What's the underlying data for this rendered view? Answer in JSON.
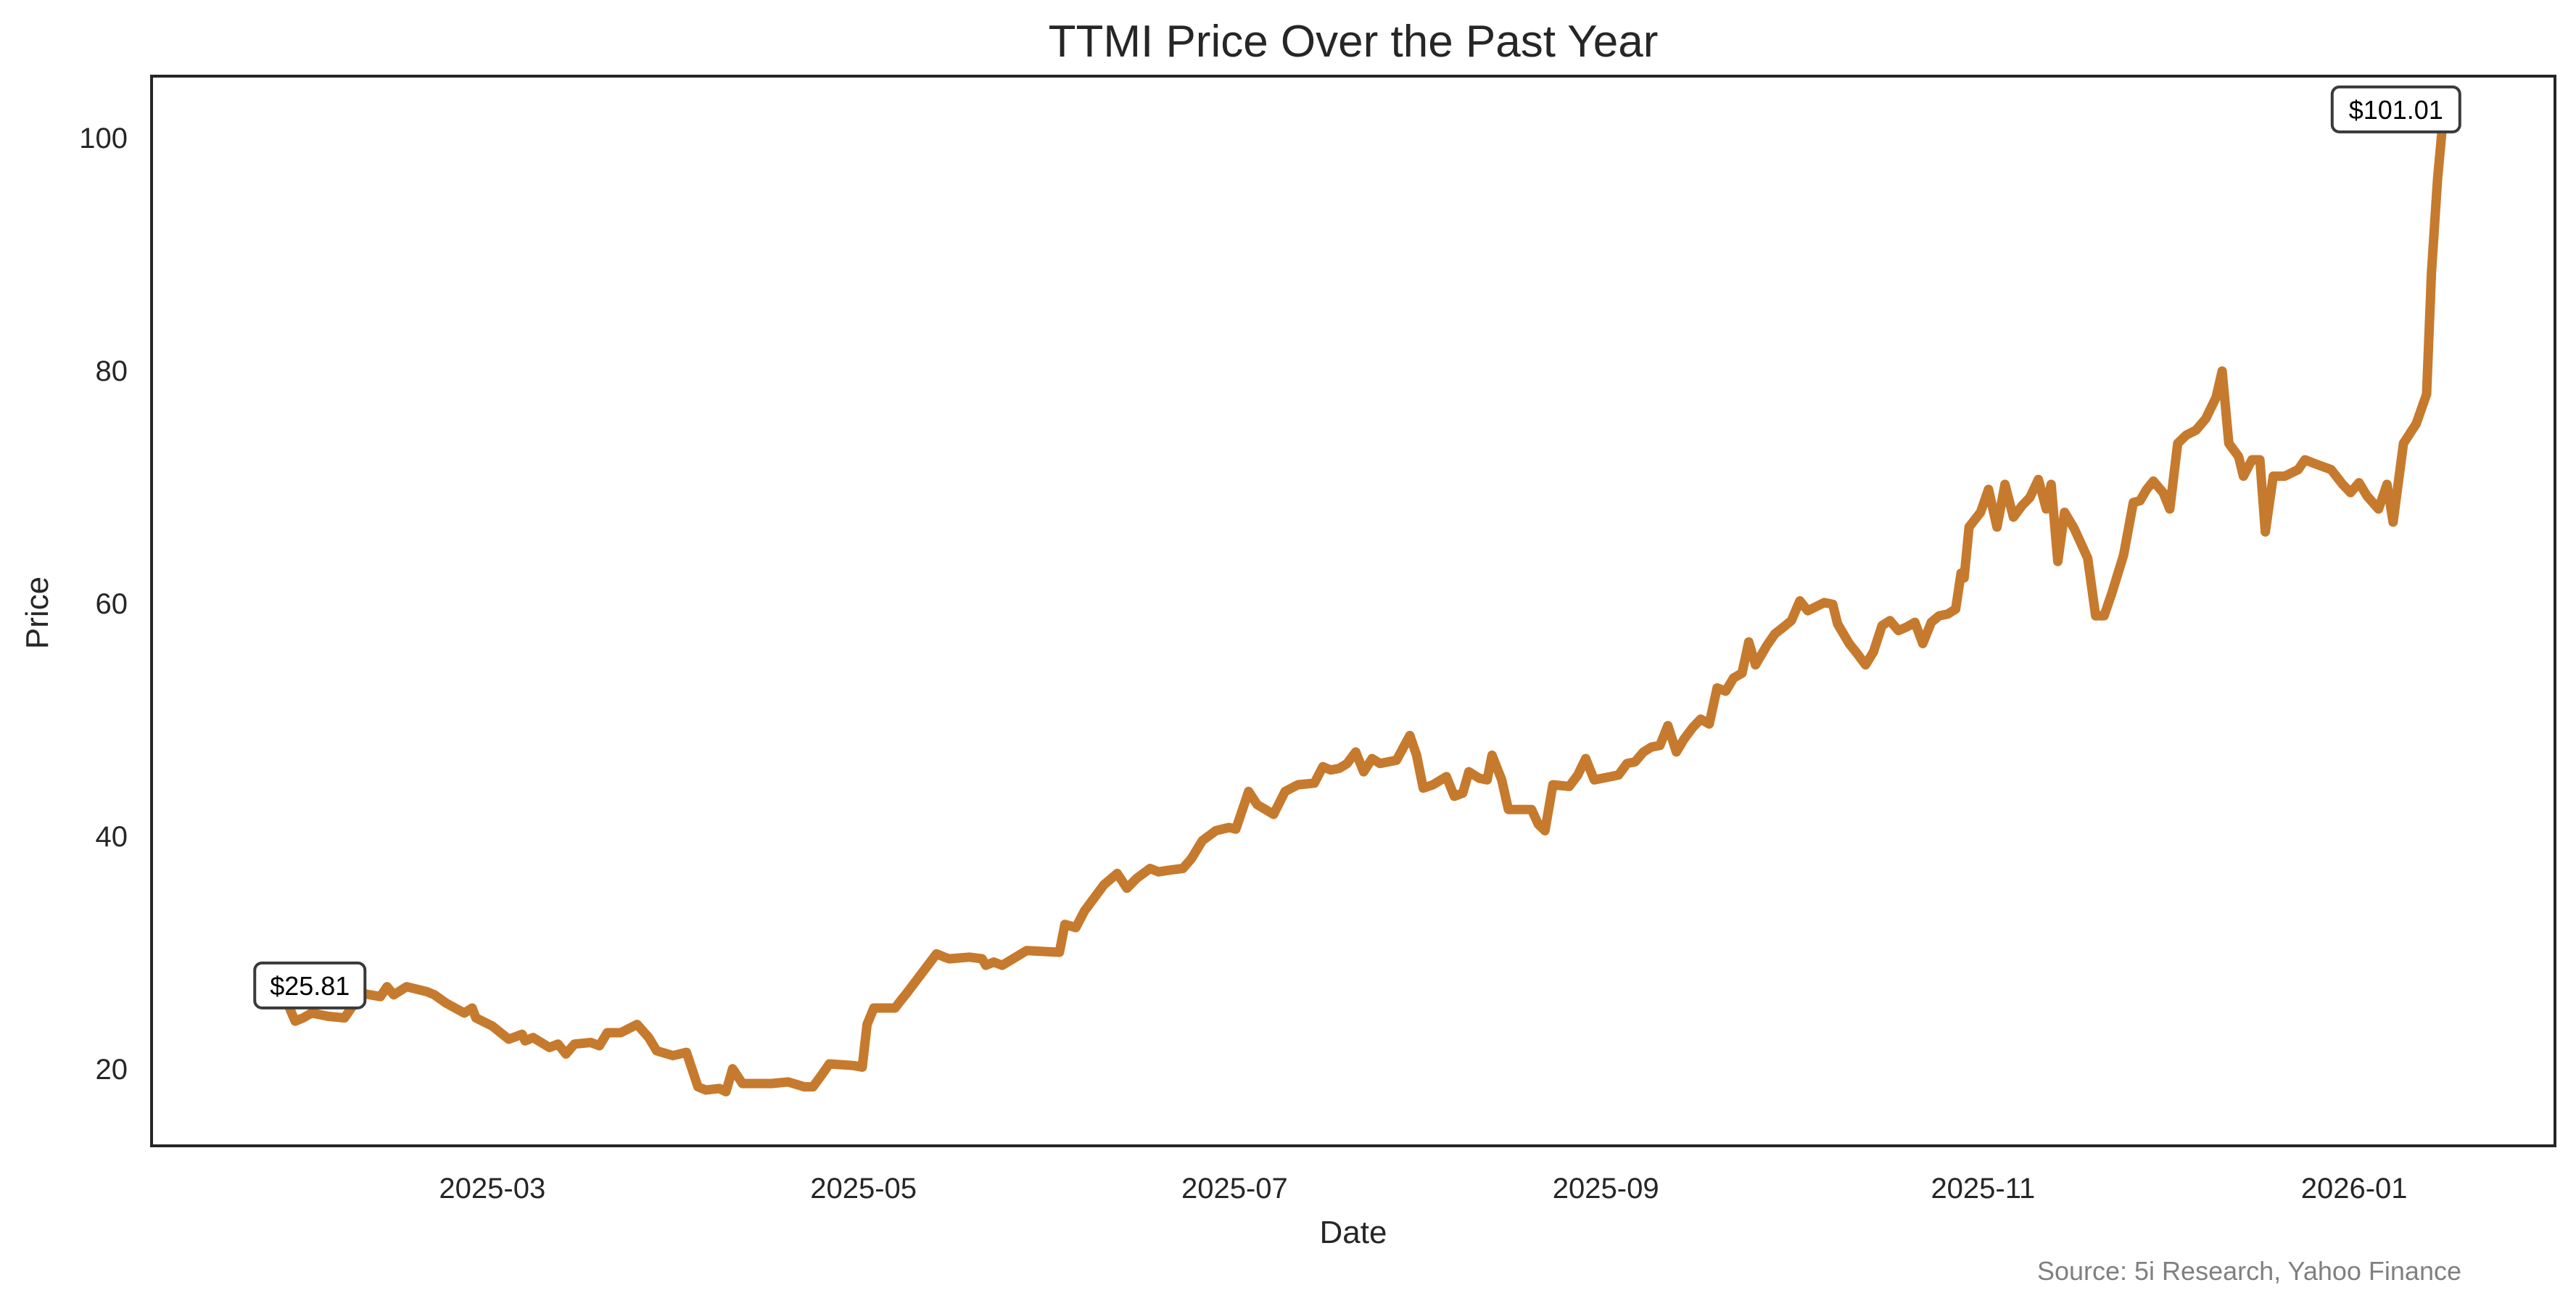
{
  "chart_data": {
    "type": "line",
    "title": "TTMI Price Over the Past Year",
    "xlabel": "Date",
    "ylabel": "Price",
    "source": "Source: 5i Research, Yahoo Finance",
    "x_unit": "days relative to 2026-01-01",
    "x_range": [
      -362,
      33
    ],
    "ylim": [
      13.4,
      105.3
    ],
    "grid": false,
    "line_color": "#C67A2E",
    "yticks": [
      20,
      40,
      60,
      80,
      100
    ],
    "ytick_labels": [
      "20",
      "40",
      "60",
      "80",
      "100"
    ],
    "xticks": [
      -306,
      -245,
      -184,
      -123,
      -61,
      0
    ],
    "xtick_labels": [
      "2025-03",
      "2025-05",
      "2025-07",
      "2025-09",
      "2025-11",
      "2026-01"
    ],
    "annotations": [
      {
        "label": "$25.81",
        "x": -339.8,
        "y": 25.81
      },
      {
        "label": "$101.01",
        "x": 14.5,
        "y": 101.01
      }
    ],
    "series": [
      {
        "name": "TTMI",
        "x": [
          -339.8,
          -338.4,
          -337.1,
          -335.7,
          -333.0,
          -330.3,
          -329.0,
          -327.6,
          -324.4,
          -323.3,
          -322.2,
          -320.1,
          -316.8,
          -315.5,
          -313.6,
          -310.6,
          -309.3,
          -308.7,
          -306.0,
          -303.3,
          -301.1,
          -300.6,
          -299.3,
          -296.6,
          -295.2,
          -293.9,
          -292.5,
          -289.8,
          -288.4,
          -287.1,
          -284.9,
          -282.2,
          -280.3,
          -279.0,
          -276.3,
          -274.1,
          -272.2,
          -270.9,
          -268.7,
          -267.6,
          -266.5,
          -264.9,
          -260.1,
          -257.4,
          -254.7,
          -253.3,
          -251.9,
          -250.6,
          -246.6,
          -245.2,
          -244.4,
          -243.3,
          -239.8,
          -239.0,
          -237.9,
          -233.0,
          -231.7,
          -230.9,
          -227.6,
          -225.5,
          -224.9,
          -223.6,
          -222.2,
          -218.2,
          -212.8,
          -211.9,
          -210.1,
          -208.7,
          -205.5,
          -203.3,
          -201.7,
          -200.1,
          -197.9,
          -196.5,
          -194.7,
          -192.5,
          -191.1,
          -189.3,
          -187.1,
          -184.9,
          -183.8,
          -181.7,
          -180.3,
          -177.6,
          -175.7,
          -173.6,
          -170.9,
          -169.5,
          -168.2,
          -166.8,
          -165.5,
          -164.1,
          -162.8,
          -161.4,
          -160.1,
          -157.4,
          -155.2,
          -154.1,
          -153.0,
          -151.4,
          -149.2,
          -147.9,
          -146.5,
          -145.5,
          -143.8,
          -142.5,
          -141.7,
          -140.1,
          -139.0,
          -137.1,
          -135.2,
          -134.1,
          -133.0,
          -131.7,
          -129.0,
          -127.6,
          -126.3,
          -124.9,
          -122.2,
          -120.9,
          -119.5,
          -118.2,
          -116.8,
          -115.5,
          -114.1,
          -112.8,
          -111.4,
          -110.1,
          -108.7,
          -107.4,
          -106.0,
          -104.7,
          -103.3,
          -102.0,
          -100.6,
          -99.5,
          -98.4,
          -96.5,
          -95.2,
          -93.8,
          -92.5,
          -91.1,
          -89.8,
          -87.1,
          -85.7,
          -84.9,
          -83.0,
          -81.7,
          -80.3,
          -79.0,
          -77.6,
          -76.3,
          -74.9,
          -73.6,
          -72.2,
          -70.9,
          -69.5,
          -68.2,
          -66.8,
          -65.5,
          -64.6,
          -64.1,
          -63.3,
          -61.4,
          -60.1,
          -58.7,
          -57.4,
          -56.0,
          -54.6,
          -53.3,
          -51.9,
          -50.6,
          -49.8,
          -48.7,
          -47.6,
          -46.0,
          -43.8,
          -42.5,
          -41.1,
          -39.8,
          -37.9,
          -36.3,
          -35.2,
          -34.1,
          -33.0,
          -31.4,
          -30.3,
          -29.0,
          -27.6,
          -26.0,
          -24.4,
          -22.7,
          -21.7,
          -20.6,
          -19.0,
          -18.2,
          -16.8,
          -15.5,
          -14.6,
          -13.3,
          -11.4,
          -9.2,
          -8.1,
          -6.0,
          -3.8,
          -1.9,
          -0.6,
          0.8,
          2.1,
          4.0,
          5.4,
          6.4,
          8.1,
          10.2,
          11.9,
          12.7,
          13.7,
          14.5
        ],
        "y": [
          25.81,
          24.11,
          24.39,
          24.81,
          24.53,
          24.39,
          25.38,
          26.51,
          26.22,
          27.07,
          26.37,
          27.07,
          26.65,
          26.37,
          25.66,
          24.81,
          25.24,
          24.39,
          23.69,
          22.56,
          22.98,
          22.42,
          22.7,
          21.85,
          22.14,
          21.29,
          22.14,
          22.28,
          22.0,
          23.12,
          23.12,
          23.83,
          22.7,
          21.57,
          21.15,
          21.43,
          18.47,
          18.19,
          18.33,
          18.05,
          20.02,
          18.75,
          18.75,
          18.89,
          18.47,
          18.47,
          19.46,
          20.44,
          20.3,
          20.16,
          23.83,
          25.24,
          25.24,
          25.8,
          26.51,
          29.89,
          29.61,
          29.47,
          29.61,
          29.47,
          28.91,
          29.19,
          28.91,
          30.17,
          30.03,
          32.43,
          32.15,
          33.56,
          35.82,
          36.8,
          35.53,
          36.38,
          37.23,
          36.94,
          37.09,
          37.23,
          38.07,
          39.62,
          40.47,
          40.75,
          40.61,
          43.85,
          42.72,
          41.88,
          43.85,
          44.42,
          44.56,
          45.97,
          45.69,
          45.83,
          46.25,
          47.24,
          45.54,
          46.67,
          46.25,
          46.53,
          48.65,
          46.96,
          44.13,
          44.42,
          45.12,
          43.43,
          43.71,
          45.54,
          44.98,
          44.84,
          46.96,
          44.84,
          42.3,
          42.3,
          42.3,
          41.03,
          40.47,
          44.42,
          44.28,
          45.26,
          46.67,
          44.84,
          45.12,
          45.26,
          46.25,
          46.39,
          47.24,
          47.66,
          47.8,
          49.5,
          47.24,
          48.37,
          49.35,
          50.06,
          49.64,
          52.74,
          52.46,
          53.59,
          54.01,
          56.69,
          54.72,
          56.41,
          57.39,
          57.96,
          58.52,
          60.22,
          59.37,
          60.07,
          59.93,
          58.24,
          56.55,
          55.7,
          54.72,
          55.84,
          58.1,
          58.52,
          57.67,
          57.96,
          58.38,
          56.55,
          58.38,
          58.94,
          59.08,
          59.51,
          62.61,
          62.19,
          66.56,
          67.83,
          69.8,
          66.56,
          70.23,
          67.41,
          68.39,
          69.1,
          70.65,
          68.11,
          70.23,
          63.6,
          67.83,
          66.42,
          63.88,
          58.94,
          58.94,
          60.92,
          64.16,
          68.67,
          68.82,
          69.8,
          70.51,
          69.52,
          68.11,
          73.75,
          74.46,
          74.88,
          75.87,
          77.7,
          79.96,
          73.75,
          72.62,
          70.93,
          72.34,
          72.34,
          66.14,
          70.93,
          70.93,
          71.5,
          72.34,
          71.92,
          71.5,
          70.23,
          69.52,
          70.37,
          69.24,
          68.11,
          70.23,
          66.98,
          73.75,
          75.44,
          77.98,
          88.42,
          96.46,
          101.01
        ]
      }
    ]
  }
}
